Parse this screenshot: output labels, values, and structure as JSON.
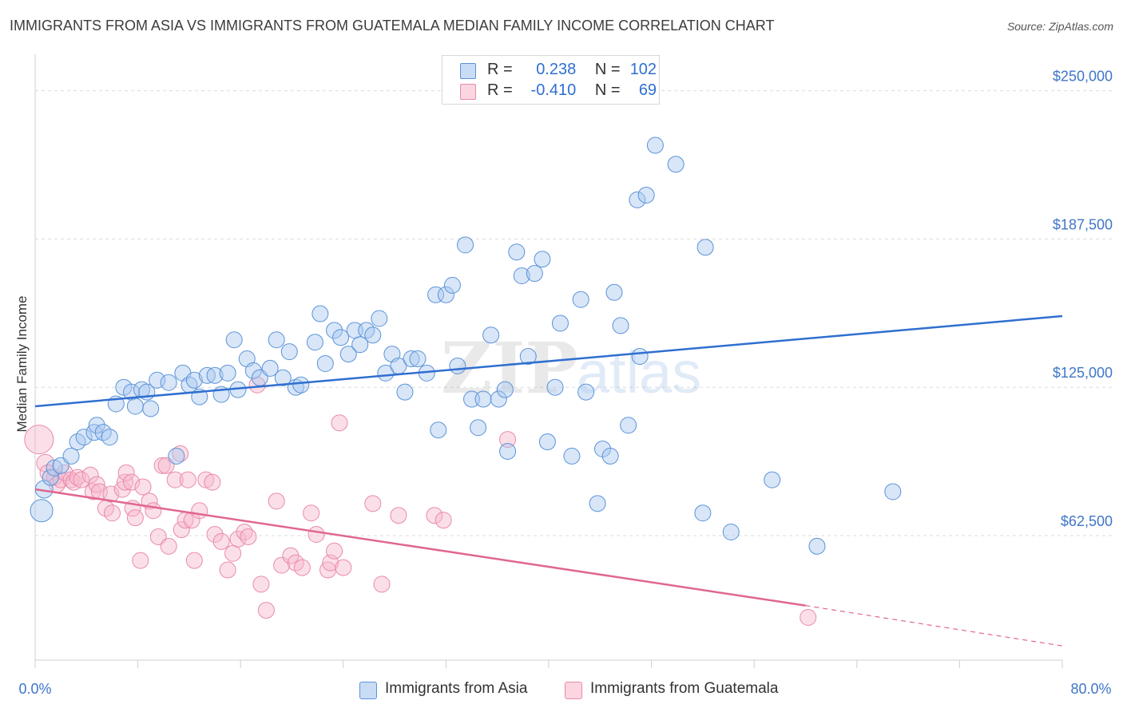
{
  "title": "IMMIGRANTS FROM ASIA VS IMMIGRANTS FROM GUATEMALA MEDIAN FAMILY INCOME CORRELATION CHART",
  "source": "Source: ZipAtlas.com",
  "watermark": {
    "zip": "ZIP",
    "atlas": "atlas"
  },
  "legend_stats": [
    {
      "r_label": "R =",
      "r_value": "0.238",
      "n_label": "N =",
      "n_value": "102",
      "color": "#a9c8f0"
    },
    {
      "r_label": "R =",
      "r_value": "-0.410",
      "n_label": "N =",
      "n_value": "69",
      "color": "#f6b8cb"
    }
  ],
  "bottom_legend": [
    {
      "label": "Immigrants from Asia",
      "color": "#a9c8f0"
    },
    {
      "label": "Immigrants from Guatemala",
      "color": "#f6b8cb"
    }
  ],
  "chart_data": {
    "type": "scatter",
    "title": "IMMIGRANTS FROM ASIA VS IMMIGRANTS FROM GUATEMALA MEDIAN FAMILY INCOME CORRELATION CHART",
    "xlabel": "",
    "ylabel": "Median Family Income",
    "xlim": [
      0,
      80
    ],
    "ylim": [
      10000,
      262000
    ],
    "x_tick_labels": [
      "0.0%",
      "80.0%"
    ],
    "y_ticks": [
      62500,
      125000,
      187500,
      250000
    ],
    "y_tick_labels": [
      "$62,500",
      "$125,000",
      "$187,500",
      "$250,000"
    ],
    "grid": true,
    "colors": {
      "asia_fill": "#a9c8f0",
      "asia_stroke": "#5b93d8",
      "asia_line": "#2f6fd0",
      "guat_fill": "#f6b8cb",
      "guat_stroke": "#e98aa8",
      "guat_line": "#e0678f",
      "tick_text": "#3f76c8",
      "grid": "#dcdcdc"
    },
    "series": [
      {
        "name": "Immigrants from Asia",
        "trend": {
          "x": [
            0,
            80
          ],
          "y": [
            117000,
            155000
          ]
        },
        "points": [
          [
            0.5,
            73000,
            14
          ],
          [
            0.7,
            82000,
            11
          ],
          [
            1.2,
            87000,
            10
          ],
          [
            1.5,
            91000,
            10
          ],
          [
            2.0,
            92000,
            10
          ],
          [
            2.8,
            96000,
            10
          ],
          [
            3.3,
            102000,
            10
          ],
          [
            3.8,
            104000,
            10
          ],
          [
            4.6,
            106000,
            10
          ],
          [
            4.8,
            109000,
            10
          ],
          [
            5.3,
            106000,
            10
          ],
          [
            5.8,
            104000,
            10
          ],
          [
            6.3,
            118000,
            10
          ],
          [
            6.9,
            125000,
            10
          ],
          [
            7.5,
            123000,
            10
          ],
          [
            7.8,
            117000,
            10
          ],
          [
            8.3,
            124000,
            10
          ],
          [
            8.7,
            123000,
            10
          ],
          [
            9.0,
            116000,
            10
          ],
          [
            9.5,
            128000,
            10
          ],
          [
            10.4,
            127000,
            10
          ],
          [
            11.0,
            96000,
            10
          ],
          [
            11.5,
            131000,
            10
          ],
          [
            12.0,
            126000,
            10
          ],
          [
            12.4,
            128000,
            10
          ],
          [
            12.8,
            121000,
            10
          ],
          [
            13.4,
            130000,
            10
          ],
          [
            14.0,
            130000,
            10
          ],
          [
            14.5,
            122000,
            10
          ],
          [
            15.0,
            131000,
            10
          ],
          [
            15.5,
            145000,
            10
          ],
          [
            15.8,
            124000,
            10
          ],
          [
            16.5,
            137000,
            10
          ],
          [
            17.0,
            132000,
            10
          ],
          [
            17.5,
            129000,
            10
          ],
          [
            18.3,
            133000,
            10
          ],
          [
            18.8,
            145000,
            10
          ],
          [
            19.3,
            129000,
            10
          ],
          [
            19.8,
            140000,
            10
          ],
          [
            20.3,
            125000,
            10
          ],
          [
            20.7,
            126000,
            10
          ],
          [
            21.8,
            144000,
            10
          ],
          [
            22.2,
            156000,
            10
          ],
          [
            22.6,
            135000,
            10
          ],
          [
            23.3,
            149000,
            10
          ],
          [
            23.8,
            146000,
            10
          ],
          [
            24.4,
            139000,
            10
          ],
          [
            24.9,
            149000,
            10
          ],
          [
            25.3,
            143000,
            10
          ],
          [
            25.8,
            149000,
            10
          ],
          [
            26.3,
            147000,
            10
          ],
          [
            26.8,
            154000,
            10
          ],
          [
            27.3,
            131000,
            10
          ],
          [
            27.8,
            139000,
            10
          ],
          [
            28.3,
            134000,
            10
          ],
          [
            28.8,
            123000,
            10
          ],
          [
            29.3,
            137000,
            10
          ],
          [
            29.8,
            137000,
            10
          ],
          [
            30.5,
            131000,
            10
          ],
          [
            31.2,
            164000,
            10
          ],
          [
            31.4,
            107000,
            10
          ],
          [
            32.0,
            164000,
            10
          ],
          [
            32.5,
            168000,
            10
          ],
          [
            32.9,
            134000,
            10
          ],
          [
            33.5,
            185000,
            10
          ],
          [
            34.0,
            120000,
            10
          ],
          [
            34.5,
            108000,
            10
          ],
          [
            34.9,
            120000,
            10
          ],
          [
            35.5,
            147000,
            10
          ],
          [
            36.1,
            120000,
            10
          ],
          [
            36.6,
            124000,
            10
          ],
          [
            36.8,
            98000,
            10
          ],
          [
            37.5,
            182000,
            10
          ],
          [
            37.9,
            172000,
            10
          ],
          [
            38.4,
            138000,
            10
          ],
          [
            38.9,
            173000,
            10
          ],
          [
            39.5,
            179000,
            10
          ],
          [
            39.9,
            102000,
            10
          ],
          [
            40.5,
            125000,
            10
          ],
          [
            40.9,
            152000,
            10
          ],
          [
            41.8,
            96000,
            10
          ],
          [
            42.5,
            162000,
            10
          ],
          [
            42.9,
            123000,
            10
          ],
          [
            43.8,
            76000,
            10
          ],
          [
            44.2,
            99000,
            10
          ],
          [
            44.8,
            96000,
            10
          ],
          [
            45.1,
            165000,
            10
          ],
          [
            45.6,
            151000,
            10
          ],
          [
            46.2,
            109000,
            10
          ],
          [
            46.9,
            204000,
            10
          ],
          [
            47.1,
            138000,
            10
          ],
          [
            47.6,
            206000,
            10
          ],
          [
            48.3,
            227000,
            10
          ],
          [
            49.9,
            219000,
            10
          ],
          [
            52.0,
            72000,
            10
          ],
          [
            52.2,
            184000,
            10
          ],
          [
            54.2,
            64000,
            10
          ],
          [
            57.4,
            86000,
            10
          ],
          [
            60.9,
            58000,
            10
          ],
          [
            66.8,
            81000,
            10
          ]
        ]
      },
      {
        "name": "Immigrants from Guatemala",
        "trend": {
          "x": [
            0,
            60
          ],
          "y": [
            82000,
            33000
          ]
        },
        "trend_dashed": {
          "x": [
            60,
            80
          ],
          "y": [
            33000,
            16000
          ]
        },
        "points": [
          [
            0.3,
            103000,
            18
          ],
          [
            0.8,
            93000,
            11
          ],
          [
            1.0,
            89000,
            10
          ],
          [
            1.5,
            87000,
            10
          ],
          [
            1.7,
            84000,
            10
          ],
          [
            2.0,
            86000,
            10
          ],
          [
            2.3,
            89000,
            10
          ],
          [
            2.8,
            86000,
            10
          ],
          [
            3.0,
            85000,
            10
          ],
          [
            3.3,
            87000,
            10
          ],
          [
            3.6,
            86000,
            10
          ],
          [
            4.3,
            88000,
            10
          ],
          [
            4.5,
            81000,
            10
          ],
          [
            4.8,
            84000,
            10
          ],
          [
            5.0,
            81000,
            10
          ],
          [
            5.5,
            74000,
            10
          ],
          [
            5.9,
            80000,
            10
          ],
          [
            6.0,
            72000,
            10
          ],
          [
            6.8,
            82000,
            10
          ],
          [
            7.0,
            85000,
            10
          ],
          [
            7.1,
            89000,
            10
          ],
          [
            7.5,
            85000,
            10
          ],
          [
            7.6,
            74000,
            10
          ],
          [
            7.8,
            70000,
            10
          ],
          [
            8.2,
            52000,
            10
          ],
          [
            8.4,
            83000,
            10
          ],
          [
            8.9,
            77000,
            10
          ],
          [
            9.2,
            73000,
            10
          ],
          [
            9.6,
            62000,
            10
          ],
          [
            9.9,
            92000,
            10
          ],
          [
            10.2,
            92000,
            10
          ],
          [
            10.4,
            58000,
            10
          ],
          [
            10.9,
            86000,
            10
          ],
          [
            11.3,
            97000,
            10
          ],
          [
            11.4,
            65000,
            10
          ],
          [
            11.7,
            69000,
            10
          ],
          [
            11.9,
            86000,
            10
          ],
          [
            12.2,
            69000,
            10
          ],
          [
            12.4,
            52000,
            10
          ],
          [
            12.8,
            73000,
            10
          ],
          [
            13.3,
            86000,
            10
          ],
          [
            13.8,
            85000,
            10
          ],
          [
            14.0,
            63000,
            10
          ],
          [
            14.5,
            60000,
            10
          ],
          [
            15.0,
            48000,
            10
          ],
          [
            15.4,
            55000,
            10
          ],
          [
            15.8,
            61000,
            10
          ],
          [
            16.3,
            64000,
            10
          ],
          [
            16.6,
            62000,
            10
          ],
          [
            17.3,
            126000,
            10
          ],
          [
            17.6,
            42000,
            10
          ],
          [
            18.0,
            31000,
            10
          ],
          [
            18.8,
            77000,
            10
          ],
          [
            19.2,
            50000,
            10
          ],
          [
            19.9,
            54000,
            10
          ],
          [
            20.3,
            51000,
            10
          ],
          [
            20.8,
            49000,
            10
          ],
          [
            21.5,
            72000,
            10
          ],
          [
            21.9,
            63000,
            10
          ],
          [
            22.8,
            48000,
            10
          ],
          [
            23.0,
            51000,
            10
          ],
          [
            23.3,
            56000,
            10
          ],
          [
            23.7,
            110000,
            10
          ],
          [
            24.0,
            49000,
            10
          ],
          [
            26.3,
            76000,
            10
          ],
          [
            27.0,
            42000,
            10
          ],
          [
            28.3,
            71000,
            10
          ],
          [
            31.1,
            71000,
            10
          ],
          [
            31.8,
            69000,
            10
          ],
          [
            36.8,
            103000,
            10
          ],
          [
            60.2,
            28000,
            10
          ]
        ]
      }
    ]
  }
}
